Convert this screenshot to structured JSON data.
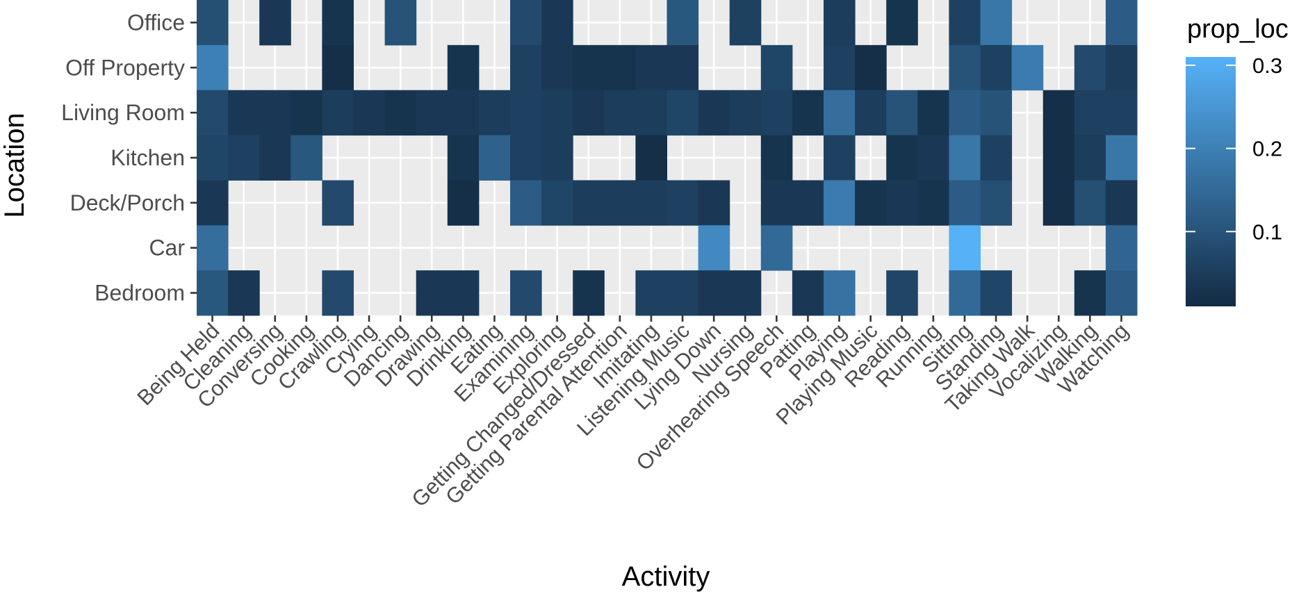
{
  "chart_data": {
    "type": "heatmap",
    "xlabel": "Activity",
    "ylabel": "Location",
    "x_categories": [
      "Being Held",
      "Cleaning",
      "Conversing",
      "Cooking",
      "Crawling",
      "Crying",
      "Dancing",
      "Drawing",
      "Drinking",
      "Eating",
      "Examining",
      "Exploring",
      "Getting Changed/Dressed",
      "Getting Parental Attention",
      "Imitating",
      "Listening Music",
      "Lying Down",
      "Nursing",
      "Overhearing Speech",
      "Patting",
      "Playing",
      "Playing Music",
      "Reading",
      "Running",
      "Sitting",
      "Standing",
      "Taking Walk",
      "Vocalizing",
      "Walking",
      "Watching"
    ],
    "y_categories": [
      "Bedroom",
      "Car",
      "Deck/Porch",
      "Kitchen",
      "Living Room",
      "Off Property",
      "Office"
    ],
    "grid": true,
    "legend": {
      "title": "prop_loc",
      "position": "right",
      "ticks": [
        "0.1",
        "0.2",
        "0.3"
      ],
      "tick_values": [
        0.1,
        0.2,
        0.3
      ],
      "range": [
        0.01,
        0.31
      ],
      "low_color": "#132B43",
      "high_color": "#56B1F7"
    },
    "cells": [
      {
        "x": "Being Held",
        "y": "Office",
        "value": 0.09
      },
      {
        "x": "Conversing",
        "y": "Office",
        "value": 0.04
      },
      {
        "x": "Crawling",
        "y": "Office",
        "value": 0.03
      },
      {
        "x": "Dancing",
        "y": "Office",
        "value": 0.1
      },
      {
        "x": "Examining",
        "y": "Office",
        "value": 0.08
      },
      {
        "x": "Exploring",
        "y": "Office",
        "value": 0.04
      },
      {
        "x": "Listening Music",
        "y": "Office",
        "value": 0.11
      },
      {
        "x": "Nursing",
        "y": "Office",
        "value": 0.06
      },
      {
        "x": "Playing",
        "y": "Office",
        "value": 0.05
      },
      {
        "x": "Reading",
        "y": "Office",
        "value": 0.03
      },
      {
        "x": "Sitting",
        "y": "Office",
        "value": 0.06
      },
      {
        "x": "Standing",
        "y": "Office",
        "value": 0.18
      },
      {
        "x": "Watching",
        "y": "Office",
        "value": 0.12
      },
      {
        "x": "Being Held",
        "y": "Off Property",
        "value": 0.2
      },
      {
        "x": "Crawling",
        "y": "Off Property",
        "value": 0.02
      },
      {
        "x": "Drinking",
        "y": "Off Property",
        "value": 0.03
      },
      {
        "x": "Examining",
        "y": "Off Property",
        "value": 0.06
      },
      {
        "x": "Exploring",
        "y": "Off Property",
        "value": 0.04
      },
      {
        "x": "Getting Changed/Dressed",
        "y": "Off Property",
        "value": 0.03
      },
      {
        "x": "Getting Parental Attention",
        "y": "Off Property",
        "value": 0.03
      },
      {
        "x": "Imitating",
        "y": "Off Property",
        "value": 0.04
      },
      {
        "x": "Listening Music",
        "y": "Off Property",
        "value": 0.04
      },
      {
        "x": "Overhearing Speech",
        "y": "Off Property",
        "value": 0.07
      },
      {
        "x": "Playing",
        "y": "Off Property",
        "value": 0.06
      },
      {
        "x": "Playing Music",
        "y": "Off Property",
        "value": 0.02
      },
      {
        "x": "Sitting",
        "y": "Off Property",
        "value": 0.1
      },
      {
        "x": "Standing",
        "y": "Off Property",
        "value": 0.06
      },
      {
        "x": "Taking Walk",
        "y": "Off Property",
        "value": 0.19
      },
      {
        "x": "Walking",
        "y": "Off Property",
        "value": 0.08
      },
      {
        "x": "Watching",
        "y": "Off Property",
        "value": 0.05
      },
      {
        "x": "Being Held",
        "y": "Living Room",
        "value": 0.08
      },
      {
        "x": "Cleaning",
        "y": "Living Room",
        "value": 0.04
      },
      {
        "x": "Conversing",
        "y": "Living Room",
        "value": 0.04
      },
      {
        "x": "Cooking",
        "y": "Living Room",
        "value": 0.03
      },
      {
        "x": "Crawling",
        "y": "Living Room",
        "value": 0.05
      },
      {
        "x": "Crying",
        "y": "Living Room",
        "value": 0.04
      },
      {
        "x": "Dancing",
        "y": "Living Room",
        "value": 0.03
      },
      {
        "x": "Drawing",
        "y": "Living Room",
        "value": 0.04
      },
      {
        "x": "Drinking",
        "y": "Living Room",
        "value": 0.04
      },
      {
        "x": "Eating",
        "y": "Living Room",
        "value": 0.05
      },
      {
        "x": "Examining",
        "y": "Living Room",
        "value": 0.06
      },
      {
        "x": "Exploring",
        "y": "Living Room",
        "value": 0.05
      },
      {
        "x": "Getting Changed/Dressed",
        "y": "Living Room",
        "value": 0.04
      },
      {
        "x": "Getting Parental Attention",
        "y": "Living Room",
        "value": 0.05
      },
      {
        "x": "Imitating",
        "y": "Living Room",
        "value": 0.05
      },
      {
        "x": "Listening Music",
        "y": "Living Room",
        "value": 0.07
      },
      {
        "x": "Lying Down",
        "y": "Living Room",
        "value": 0.04
      },
      {
        "x": "Nursing",
        "y": "Living Room",
        "value": 0.05
      },
      {
        "x": "Overhearing Speech",
        "y": "Living Room",
        "value": 0.06
      },
      {
        "x": "Patting",
        "y": "Living Room",
        "value": 0.03
      },
      {
        "x": "Playing",
        "y": "Living Room",
        "value": 0.16
      },
      {
        "x": "Playing Music",
        "y": "Living Room",
        "value": 0.05
      },
      {
        "x": "Reading",
        "y": "Living Room",
        "value": 0.1
      },
      {
        "x": "Running",
        "y": "Living Room",
        "value": 0.03
      },
      {
        "x": "Sitting",
        "y": "Living Room",
        "value": 0.12
      },
      {
        "x": "Standing",
        "y": "Living Room",
        "value": 0.1
      },
      {
        "x": "Vocalizing",
        "y": "Living Room",
        "value": 0.02
      },
      {
        "x": "Walking",
        "y": "Living Room",
        "value": 0.06
      },
      {
        "x": "Watching",
        "y": "Living Room",
        "value": 0.06
      },
      {
        "x": "Being Held",
        "y": "Kitchen",
        "value": 0.07
      },
      {
        "x": "Cleaning",
        "y": "Kitchen",
        "value": 0.06
      },
      {
        "x": "Conversing",
        "y": "Kitchen",
        "value": 0.04
      },
      {
        "x": "Cooking",
        "y": "Kitchen",
        "value": 0.11
      },
      {
        "x": "Drinking",
        "y": "Kitchen",
        "value": 0.03
      },
      {
        "x": "Eating",
        "y": "Kitchen",
        "value": 0.13
      },
      {
        "x": "Examining",
        "y": "Kitchen",
        "value": 0.06
      },
      {
        "x": "Exploring",
        "y": "Kitchen",
        "value": 0.05
      },
      {
        "x": "Imitating",
        "y": "Kitchen",
        "value": 0.02
      },
      {
        "x": "Overhearing Speech",
        "y": "Kitchen",
        "value": 0.03
      },
      {
        "x": "Playing",
        "y": "Kitchen",
        "value": 0.06
      },
      {
        "x": "Reading",
        "y": "Kitchen",
        "value": 0.03
      },
      {
        "x": "Running",
        "y": "Kitchen",
        "value": 0.04
      },
      {
        "x": "Sitting",
        "y": "Kitchen",
        "value": 0.18
      },
      {
        "x": "Standing",
        "y": "Kitchen",
        "value": 0.06
      },
      {
        "x": "Vocalizing",
        "y": "Kitchen",
        "value": 0.02
      },
      {
        "x": "Walking",
        "y": "Kitchen",
        "value": 0.05
      },
      {
        "x": "Watching",
        "y": "Kitchen",
        "value": 0.18
      },
      {
        "x": "Being Held",
        "y": "Deck/Porch",
        "value": 0.04
      },
      {
        "x": "Crawling",
        "y": "Deck/Porch",
        "value": 0.08
      },
      {
        "x": "Drinking",
        "y": "Deck/Porch",
        "value": 0.02
      },
      {
        "x": "Examining",
        "y": "Deck/Porch",
        "value": 0.12
      },
      {
        "x": "Exploring",
        "y": "Deck/Porch",
        "value": 0.07
      },
      {
        "x": "Getting Changed/Dressed",
        "y": "Deck/Porch",
        "value": 0.05
      },
      {
        "x": "Getting Parental Attention",
        "y": "Deck/Porch",
        "value": 0.05
      },
      {
        "x": "Imitating",
        "y": "Deck/Porch",
        "value": 0.05
      },
      {
        "x": "Listening Music",
        "y": "Deck/Porch",
        "value": 0.06
      },
      {
        "x": "Lying Down",
        "y": "Deck/Porch",
        "value": 0.04
      },
      {
        "x": "Overhearing Speech",
        "y": "Deck/Porch",
        "value": 0.04
      },
      {
        "x": "Patting",
        "y": "Deck/Porch",
        "value": 0.04
      },
      {
        "x": "Playing",
        "y": "Deck/Porch",
        "value": 0.19
      },
      {
        "x": "Playing Music",
        "y": "Deck/Porch",
        "value": 0.03
      },
      {
        "x": "Reading",
        "y": "Deck/Porch",
        "value": 0.04
      },
      {
        "x": "Running",
        "y": "Deck/Porch",
        "value": 0.03
      },
      {
        "x": "Sitting",
        "y": "Deck/Porch",
        "value": 0.12
      },
      {
        "x": "Standing",
        "y": "Deck/Porch",
        "value": 0.09
      },
      {
        "x": "Vocalizing",
        "y": "Deck/Porch",
        "value": 0.02
      },
      {
        "x": "Walking",
        "y": "Deck/Porch",
        "value": 0.09
      },
      {
        "x": "Watching",
        "y": "Deck/Porch",
        "value": 0.04
      },
      {
        "x": "Being Held",
        "y": "Car",
        "value": 0.16
      },
      {
        "x": "Lying Down",
        "y": "Car",
        "value": 0.22
      },
      {
        "x": "Overhearing Speech",
        "y": "Car",
        "value": 0.15
      },
      {
        "x": "Sitting",
        "y": "Car",
        "value": 0.31
      },
      {
        "x": "Watching",
        "y": "Car",
        "value": 0.14
      },
      {
        "x": "Being Held",
        "y": "Bedroom",
        "value": 0.11
      },
      {
        "x": "Cleaning",
        "y": "Bedroom",
        "value": 0.04
      },
      {
        "x": "Crawling",
        "y": "Bedroom",
        "value": 0.08
      },
      {
        "x": "Drawing",
        "y": "Bedroom",
        "value": 0.04
      },
      {
        "x": "Drinking",
        "y": "Bedroom",
        "value": 0.04
      },
      {
        "x": "Examining",
        "y": "Bedroom",
        "value": 0.08
      },
      {
        "x": "Getting Changed/Dressed",
        "y": "Bedroom",
        "value": 0.03
      },
      {
        "x": "Imitating",
        "y": "Bedroom",
        "value": 0.06
      },
      {
        "x": "Listening Music",
        "y": "Bedroom",
        "value": 0.06
      },
      {
        "x": "Lying Down",
        "y": "Bedroom",
        "value": 0.04
      },
      {
        "x": "Nursing",
        "y": "Bedroom",
        "value": 0.04
      },
      {
        "x": "Patting",
        "y": "Bedroom",
        "value": 0.04
      },
      {
        "x": "Playing",
        "y": "Bedroom",
        "value": 0.17
      },
      {
        "x": "Reading",
        "y": "Bedroom",
        "value": 0.07
      },
      {
        "x": "Sitting",
        "y": "Bedroom",
        "value": 0.15
      },
      {
        "x": "Standing",
        "y": "Bedroom",
        "value": 0.07
      },
      {
        "x": "Walking",
        "y": "Bedroom",
        "value": 0.03
      },
      {
        "x": "Watching",
        "y": "Bedroom",
        "value": 0.12
      }
    ]
  }
}
